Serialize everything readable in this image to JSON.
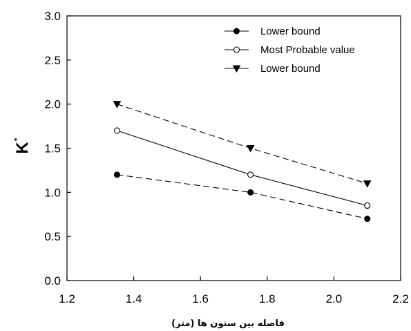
{
  "chart_data": {
    "type": "line",
    "xlabel": "فاصله بین ستون ها (متر)",
    "ylabel": "K",
    "ylabel_superscript": "*",
    "xlim": [
      1.2,
      2.2
    ],
    "ylim": [
      0.0,
      3.0
    ],
    "xticks": [
      "1.2",
      "1.4",
      "1.6",
      "1.8",
      "2.0",
      "2.2"
    ],
    "yticks": [
      "0.0",
      "0.5",
      "1.0",
      "1.5",
      "2.0",
      "2.5",
      "3.0"
    ],
    "grid": false,
    "legend_position": "top-right",
    "x": [
      1.35,
      1.75,
      2.1
    ],
    "series": [
      {
        "name": "Lower bound",
        "values": [
          1.2,
          1.0,
          0.7
        ],
        "marker": "filled-circle",
        "line_style": "dashed",
        "color": "#000000"
      },
      {
        "name": "Most Probable value",
        "values": [
          1.7,
          1.2,
          0.85
        ],
        "marker": "open-circle",
        "line_style": "solid",
        "color": "#000000"
      },
      {
        "name": "Lower bound",
        "values": [
          2.0,
          1.5,
          1.1
        ],
        "marker": "filled-triangle-down",
        "line_style": "dashed",
        "color": "#000000"
      }
    ]
  }
}
